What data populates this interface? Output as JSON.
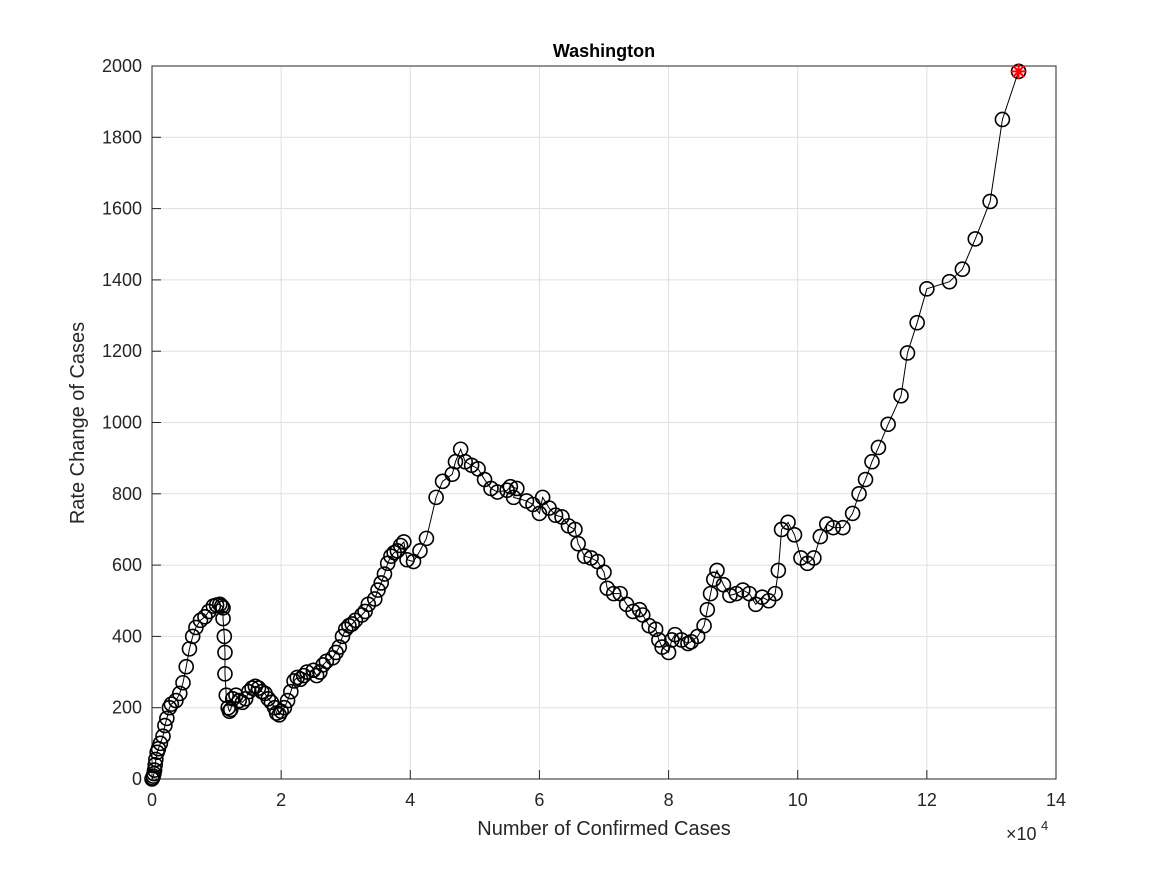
{
  "chart_data": {
    "type": "line",
    "title": "Washington",
    "x_label": "Number of Confirmed Cases",
    "y_label": "Rate Change of Cases",
    "x_scale_label": "×10",
    "x_scale_power": "4",
    "xlim": [
      0,
      14
    ],
    "xticks": [
      0,
      2,
      4,
      6,
      8,
      10,
      12,
      14
    ],
    "ylim": [
      0,
      2000
    ],
    "yticks": [
      0,
      200,
      400,
      600,
      800,
      1000,
      1200,
      1400,
      1600,
      1800,
      2000
    ],
    "grid": true,
    "marker": "circle",
    "highlight_last_color": "#ff0000",
    "x": [
      0,
      0.01,
      0.02,
      0.03,
      0.04,
      0.05,
      0.06,
      0.08,
      0.1,
      0.13,
      0.17,
      0.2,
      0.23,
      0.27,
      0.3,
      0.37,
      0.43,
      0.48,
      0.53,
      0.58,
      0.63,
      0.68,
      0.75,
      0.82,
      0.88,
      0.95,
      1.0,
      1.05,
      1.08,
      1.1,
      1.1,
      1.12,
      1.13,
      1.13,
      1.15,
      1.18,
      1.2,
      1.22,
      1.25,
      1.3,
      1.35,
      1.4,
      1.45,
      1.5,
      1.55,
      1.6,
      1.65,
      1.7,
      1.75,
      1.8,
      1.85,
      1.9,
      1.93,
      1.97,
      2.0,
      2.05,
      2.1,
      2.15,
      2.2,
      2.25,
      2.3,
      2.35,
      2.4,
      2.5,
      2.55,
      2.6,
      2.65,
      2.7,
      2.8,
      2.85,
      2.9,
      2.95,
      3.0,
      3.05,
      3.1,
      3.15,
      3.25,
      3.3,
      3.35,
      3.45,
      3.5,
      3.55,
      3.6,
      3.65,
      3.7,
      3.75,
      3.8,
      3.85,
      3.9,
      3.95,
      4.05,
      4.15,
      4.25,
      4.4,
      4.5,
      4.65,
      4.7,
      4.78,
      4.85,
      4.95,
      5.05,
      5.15,
      5.25,
      5.35,
      5.5,
      5.55,
      5.65,
      5.6,
      5.8,
      5.9,
      6.0,
      6.05,
      6.15,
      6.25,
      6.35,
      6.45,
      6.55,
      6.6,
      6.7,
      6.8,
      6.9,
      7.0,
      7.05,
      7.15,
      7.25,
      7.35,
      7.45,
      7.55,
      7.6,
      7.7,
      7.8,
      7.85,
      7.9,
      8.0,
      8.05,
      8.1,
      8.2,
      8.3,
      8.35,
      8.45,
      8.55,
      8.6,
      8.65,
      8.7,
      8.75,
      8.85,
      8.95,
      9.05,
      9.15,
      9.25,
      9.35,
      9.45,
      9.55,
      9.65,
      9.7,
      9.75,
      9.85,
      9.95,
      10.05,
      10.15,
      10.25,
      10.35,
      10.45,
      10.55,
      10.7,
      10.85,
      10.95,
      11.05,
      11.15,
      11.25,
      11.4,
      11.6,
      11.7,
      11.85,
      12.0,
      12.35,
      12.55,
      12.75,
      12.98,
      13.17,
      13.42
    ],
    "series": [
      {
        "color": "#000000",
        "values": [
          0,
          3,
          8,
          15,
          25,
          40,
          55,
          75,
          85,
          100,
          120,
          150,
          170,
          200,
          210,
          220,
          240,
          270,
          315,
          365,
          400,
          425,
          445,
          455,
          470,
          485,
          488,
          490,
          485,
          480,
          450,
          400,
          355,
          295,
          235,
          200,
          190,
          195,
          225,
          235,
          220,
          215,
          225,
          245,
          255,
          260,
          255,
          245,
          240,
          225,
          215,
          200,
          185,
          180,
          190,
          200,
          220,
          245,
          275,
          285,
          280,
          290,
          300,
          305,
          290,
          300,
          320,
          330,
          340,
          355,
          370,
          400,
          420,
          430,
          435,
          445,
          460,
          470,
          490,
          505,
          530,
          550,
          575,
          605,
          625,
          635,
          640,
          655,
          665,
          615,
          610,
          640,
          675,
          790,
          835,
          855,
          890,
          925,
          890,
          880,
          870,
          840,
          815,
          805,
          810,
          820,
          815,
          790,
          780,
          770,
          745,
          790,
          760,
          740,
          735,
          710,
          700,
          660,
          625,
          620,
          610,
          580,
          535,
          520,
          520,
          490,
          470,
          475,
          460,
          430,
          420,
          390,
          370,
          355,
          390,
          405,
          390,
          380,
          385,
          400,
          430,
          475,
          520,
          560,
          585,
          545,
          515,
          520,
          530,
          520,
          490,
          510,
          500,
          520,
          585,
          700,
          720,
          685,
          620,
          605,
          620,
          680,
          715,
          705,
          705,
          745,
          800,
          840,
          890,
          930,
          995,
          1075,
          1195,
          1280,
          1375,
          1395,
          1430,
          1515,
          1620,
          1850,
          1985
        ]
      }
    ]
  }
}
